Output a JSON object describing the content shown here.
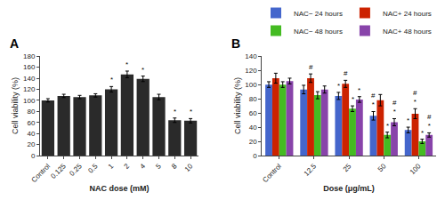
{
  "chart_data": [
    {
      "type": "bar",
      "title": "A",
      "categories": [
        "Control",
        "0.125",
        "0.25",
        "0.5",
        "1",
        "2",
        "4",
        "5",
        "8",
        "10"
      ],
      "values": [
        100,
        108,
        106,
        109,
        120,
        147,
        139,
        106,
        64,
        63
      ],
      "errors": [
        3,
        3,
        3,
        3,
        5,
        6,
        5,
        5,
        4,
        4
      ],
      "color": "#2a2a2a",
      "xlabel": "NAC dose (mM)",
      "ylabel": "Cell viability (%)",
      "ylim": [
        0,
        180
      ],
      "yticks": [
        0,
        20,
        40,
        60,
        80,
        100,
        120,
        140,
        160,
        180
      ],
      "grid": false,
      "annotations": [
        {
          "category": "1",
          "text": "*"
        },
        {
          "category": "2",
          "text": "*"
        },
        {
          "category": "4",
          "text": "*"
        },
        {
          "category": "8",
          "text": "*"
        },
        {
          "category": "10",
          "text": "*"
        }
      ]
    },
    {
      "type": "bar",
      "title": "B",
      "categories": [
        "Control",
        "12.5",
        "25",
        "50",
        "100"
      ],
      "series": [
        {
          "name": "NAC− 24 hours",
          "color": "#4466cc",
          "values": [
            100,
            93,
            84,
            56,
            36
          ],
          "errors": [
            4,
            6,
            5,
            6,
            4
          ]
        },
        {
          "name": "NAC+ 24 hours",
          "color": "#cc2200",
          "values": [
            109,
            109,
            101,
            78,
            59
          ],
          "errors": [
            7,
            6,
            5,
            8,
            7
          ]
        },
        {
          "name": "NAC− 48 hours",
          "color": "#44bb22",
          "values": [
            100,
            85,
            66,
            29,
            20
          ],
          "errors": [
            4,
            5,
            4,
            4,
            3
          ]
        },
        {
          "name": "NAC+ 48 hours",
          "color": "#8844aa",
          "values": [
            105,
            93,
            79,
            47,
            29
          ],
          "errors": [
            4,
            5,
            4,
            5,
            3
          ]
        }
      ],
      "xlabel": "Dose (μg/mL)",
      "ylabel": "Cell viability (%)",
      "ylim": [
        0,
        140
      ],
      "yticks": [
        0,
        20,
        40,
        60,
        80,
        100,
        120,
        140
      ],
      "grid": false,
      "legend": "upper right",
      "annotations": [
        {
          "category": "12.5",
          "series": "NAC+ 24 hours",
          "text": "#"
        },
        {
          "category": "25",
          "series": "NAC− 24 hours",
          "text": "*"
        },
        {
          "category": "25",
          "series": "NAC+ 24 hours",
          "text": "#"
        },
        {
          "category": "25",
          "series": "NAC− 48 hours",
          "text": "*"
        },
        {
          "category": "25",
          "series": "NAC+ 48 hours",
          "text": "*"
        },
        {
          "category": "50",
          "series": "NAC− 24 hours",
          "text": "*#"
        },
        {
          "category": "50",
          "series": "NAC− 48 hours",
          "text": "*"
        },
        {
          "category": "50",
          "series": "NAC+ 48 hours",
          "text": "*#"
        },
        {
          "category": "100",
          "series": "NAC− 24 hours",
          "text": "*"
        },
        {
          "category": "100",
          "series": "NAC+ 24 hours",
          "text": "*#"
        },
        {
          "category": "100",
          "series": "NAC− 48 hours",
          "text": "*"
        },
        {
          "category": "100",
          "series": "NAC+ 48 hours",
          "text": "*#"
        }
      ]
    }
  ]
}
